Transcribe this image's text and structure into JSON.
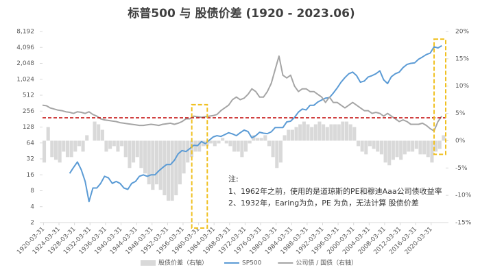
{
  "chart_data": {
    "type": "combo",
    "title": "标普500 与 股债价差 (1920 - 2023.06)",
    "x": [
      1920,
      1921,
      1922,
      1923,
      1924,
      1925,
      1926,
      1927,
      1928,
      1929,
      1930,
      1931,
      1932,
      1933,
      1934,
      1935,
      1936,
      1937,
      1938,
      1939,
      1940,
      1941,
      1942,
      1943,
      1944,
      1945,
      1946,
      1947,
      1948,
      1949,
      1950,
      1951,
      1952,
      1953,
      1954,
      1955,
      1956,
      1957,
      1958,
      1959,
      1960,
      1961,
      1962,
      1963,
      1964,
      1965,
      1966,
      1967,
      1968,
      1969,
      1970,
      1971,
      1972,
      1973,
      1974,
      1975,
      1976,
      1977,
      1978,
      1979,
      1980,
      1981,
      1982,
      1983,
      1984,
      1985,
      1986,
      1987,
      1988,
      1989,
      1990,
      1991,
      1992,
      1993,
      1994,
      1995,
      1996,
      1997,
      1998,
      1999,
      2000,
      2001,
      2002,
      2003,
      2004,
      2005,
      2006,
      2007,
      2008,
      2009,
      2010,
      2011,
      2012,
      2013,
      2014,
      2015,
      2016,
      2017,
      2018,
      2019,
      2020,
      2021,
      2022,
      2023
    ],
    "xlim": [
      1920,
      2024
    ],
    "xticks": [
      {
        "value": 1920.25,
        "label": "1920-03-31"
      },
      {
        "value": 1924.25,
        "label": "1924-03-31"
      },
      {
        "value": 1928.25,
        "label": "1928-03-31"
      },
      {
        "value": 1932.25,
        "label": "1932-03-31"
      },
      {
        "value": 1936.25,
        "label": "1936-03-31"
      },
      {
        "value": 1940.25,
        "label": "1940-03-31"
      },
      {
        "value": 1944.25,
        "label": "1944-03-31"
      },
      {
        "value": 1948.25,
        "label": "1948-03-31"
      },
      {
        "value": 1952.25,
        "label": "1952-03-31"
      },
      {
        "value": 1956.25,
        "label": "1956-03-31"
      },
      {
        "value": 1960.25,
        "label": "1960-03-31"
      },
      {
        "value": 1964.25,
        "label": "1964-03-31"
      },
      {
        "value": 1968.25,
        "label": "1968-03-31"
      },
      {
        "value": 1972.25,
        "label": "1972-03-31"
      },
      {
        "value": 1976.25,
        "label": "1976-03-31"
      },
      {
        "value": 1980.25,
        "label": "1980-03-31"
      },
      {
        "value": 1984.25,
        "label": "1984-03-31"
      },
      {
        "value": 1988.25,
        "label": "1988-03-31"
      },
      {
        "value": 1992.25,
        "label": "1992-03-31"
      },
      {
        "value": 1996.25,
        "label": "1996-03-31"
      },
      {
        "value": 2000.25,
        "label": "2000-03-31"
      },
      {
        "value": 2004.25,
        "label": "2004-03-31"
      },
      {
        "value": 2008.25,
        "label": "2008-03-31"
      },
      {
        "value": 2012.25,
        "label": "2012-03-31"
      },
      {
        "value": 2016.25,
        "label": "2016-03-31"
      },
      {
        "value": 2020.25,
        "label": "2020-03-31"
      }
    ],
    "ylim": [
      2,
      8192
    ],
    "log_scale": true,
    "yticks": [
      2,
      4,
      8,
      16,
      32,
      64,
      128,
      256,
      512,
      {
        "value": 1024,
        "label": "1,024"
      },
      {
        "value": 2048,
        "label": "2,048"
      },
      {
        "value": 4096,
        "label": "4,096"
      },
      {
        "value": 8192,
        "label": "8,192"
      }
    ],
    "y2lim": [
      -15,
      20
    ],
    "y2ticks": [
      {
        "value": -15,
        "label": "-15%"
      },
      {
        "value": -10,
        "label": "-10%"
      },
      {
        "value": -5,
        "label": "-5%"
      },
      {
        "value": 0,
        "label": "0%"
      },
      {
        "value": 5,
        "label": "5%"
      },
      {
        "value": 10,
        "label": "10%"
      },
      {
        "value": 15,
        "label": "15%"
      },
      {
        "value": 20,
        "label": "20%"
      }
    ],
    "grid": false,
    "legend": "bottom",
    "series": [
      {
        "name": "股债价差（右轴）",
        "kind": "bar",
        "axis": "y2",
        "color": "#d9d9d9",
        "values": [
          -4,
          2.5,
          -3,
          -3.5,
          -4,
          -2,
          -3,
          -3,
          -2,
          -1,
          -2,
          1,
          null,
          3.5,
          3,
          2,
          -2,
          -1.5,
          -1,
          -2,
          -1,
          -3,
          -5,
          -4,
          -3,
          -5,
          -6,
          -8,
          -9,
          -8,
          -9,
          -10,
          -11,
          -11,
          -10,
          -8,
          -6,
          -4,
          -3,
          -2,
          -2,
          -1,
          -1,
          -0.5,
          -1,
          -0.5,
          0.5,
          -0.5,
          -1,
          -2,
          -2,
          -3,
          -2,
          -0.5,
          1,
          0.5,
          0.5,
          1,
          -1,
          -3,
          -5,
          -4,
          1,
          2,
          2,
          2.5,
          3,
          3.5,
          3,
          2.5,
          3,
          3.5,
          3,
          2.5,
          3,
          3,
          3,
          3.5,
          3.5,
          3,
          2.5,
          -1,
          -2,
          -2.5,
          -1,
          -1.5,
          -2,
          -2.5,
          -4,
          -4.5,
          -3.5,
          -3,
          -3.5,
          -2.5,
          -2,
          -2,
          -1.5,
          -2.5,
          -2.5,
          -3,
          -4,
          -2,
          -1.5,
          1
        ]
      },
      {
        "name": "SP500",
        "kind": "line",
        "axis": "y",
        "color": "#5b9bd5",
        "values": [
          null,
          null,
          null,
          null,
          null,
          null,
          null,
          17,
          22,
          28,
          20,
          12,
          5,
          9,
          9,
          11,
          15,
          14,
          11,
          12,
          11,
          9,
          8.5,
          11,
          12,
          15,
          16,
          15,
          16,
          16,
          19,
          22,
          25,
          25,
          30,
          40,
          46,
          44,
          50,
          58,
          57,
          68,
          62,
          72,
          83,
          88,
          85,
          92,
          100,
          95,
          88,
          100,
          112,
          105,
          80,
          88,
          102,
          98,
          96,
          104,
          125,
          125,
          125,
          160,
          165,
          195,
          245,
          280,
          270,
          330,
          330,
          380,
          415,
          450,
          460,
          560,
          700,
          900,
          1100,
          1300,
          1400,
          1200,
          900,
          950,
          1130,
          1200,
          1300,
          1480,
          1000,
          850,
          1150,
          1300,
          1400,
          1700,
          1950,
          2050,
          2100,
          2450,
          2700,
          3000,
          3200,
          4200,
          4000,
          4400
        ]
      },
      {
        "name": "公司债 / 国债（右轴）",
        "kind": "line",
        "axis": "y2",
        "color": "#a5a5a5",
        "values": [
          6.5,
          6.4,
          6.0,
          5.8,
          5.6,
          5.5,
          5.3,
          5.2,
          5.0,
          5.3,
          5.2,
          5.0,
          5.3,
          4.8,
          4.5,
          4.0,
          3.8,
          3.7,
          3.6,
          3.5,
          3.3,
          3.2,
          3.1,
          3.0,
          2.9,
          2.8,
          2.8,
          2.9,
          3.0,
          2.9,
          2.8,
          3.0,
          3.1,
          3.2,
          3.0,
          3.2,
          3.5,
          4.0,
          4.0,
          4.5,
          4.4,
          4.3,
          4.4,
          4.5,
          4.6,
          4.8,
          5.5,
          6.0,
          6.5,
          7.5,
          8.0,
          7.5,
          7.8,
          8.5,
          9.5,
          9.0,
          8.0,
          8.0,
          9.0,
          10.5,
          13.0,
          15.5,
          12.0,
          11.5,
          12.0,
          10.0,
          9.0,
          9.5,
          9.5,
          9.0,
          9.0,
          8.5,
          8.0,
          7.0,
          8.0,
          7.0,
          7.0,
          6.5,
          6.0,
          6.5,
          7.0,
          6.5,
          6.0,
          5.5,
          5.5,
          5.0,
          5.2,
          5.0,
          4.5,
          5.0,
          4.5,
          4.0,
          3.5,
          3.8,
          3.5,
          3.0,
          3.0,
          3.0,
          3.2,
          2.8,
          2.2,
          1.8,
          3.5,
          4.5
        ]
      }
    ],
    "reference_line": {
      "axis": "y2",
      "value": 4.2,
      "color": "#c00000"
    },
    "highlights": [
      {
        "x": [
          1958.5,
          1962.5
        ],
        "y2": [
          -16,
          6.6
        ],
        "color": "#f0c020"
      },
      {
        "x": [
          2021,
          2024
        ],
        "y2": [
          -2.5,
          18.6
        ],
        "color": "#f0c020"
      }
    ],
    "annotation": [
      "注:",
      "1、1962年之前，使用的是道琼斯的PE和穆迪Aaa公司债收益率",
      "2、1932年，Earing为负，PE 为负，无法计算 股债价差"
    ]
  }
}
